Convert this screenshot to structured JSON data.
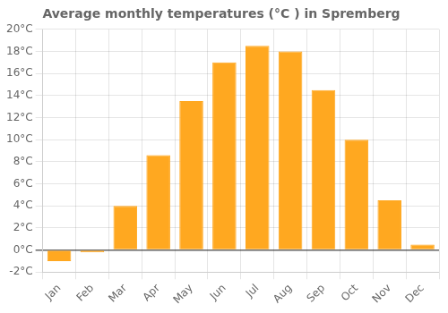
{
  "chart_data": {
    "type": "bar",
    "title": "Average monthly temperatures (°C ) in Spremberg",
    "categories": [
      "Jan",
      "Feb",
      "Mar",
      "Apr",
      "May",
      "Jun",
      "Jul",
      "Aug",
      "Sep",
      "Oct",
      "Nov",
      "Dec"
    ],
    "values": [
      -1.0,
      -0.2,
      4.0,
      8.6,
      13.5,
      17.0,
      18.5,
      18.0,
      14.5,
      10.0,
      4.5,
      0.5
    ],
    "color": "#FFA820",
    "ylim": [
      -2,
      20
    ],
    "yticks": [
      {
        "value": -2,
        "label": "-2°C"
      },
      {
        "value": 0,
        "label": "0°C"
      },
      {
        "value": 2,
        "label": "2°C"
      },
      {
        "value": 4,
        "label": "4°C"
      },
      {
        "value": 6,
        "label": "6°C"
      },
      {
        "value": 8,
        "label": "8°C"
      },
      {
        "value": 10,
        "label": "10°C"
      },
      {
        "value": 12,
        "label": "12°C"
      },
      {
        "value": 14,
        "label": "14°C"
      },
      {
        "value": 16,
        "label": "16°C"
      },
      {
        "value": 18,
        "label": "18°C"
      },
      {
        "value": 20,
        "label": "20°C"
      }
    ],
    "grid": true
  }
}
